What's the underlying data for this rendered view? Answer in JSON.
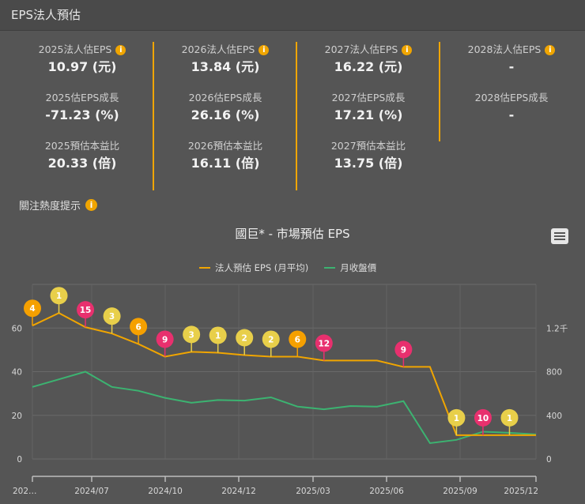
{
  "header": {
    "title": "EPS法人預估"
  },
  "columns": [
    {
      "eps_label": "2025法人估EPS",
      "eps_value": "10.97 (元)",
      "growth_label": "2025估EPS成長",
      "growth_value": "-71.23 (%)",
      "pe_label": "2025預估本益比",
      "pe_value": "20.33 (倍)"
    },
    {
      "eps_label": "2026法人估EPS",
      "eps_value": "13.84 (元)",
      "growth_label": "2026估EPS成長",
      "growth_value": "26.16 (%)",
      "pe_label": "2026預估本益比",
      "pe_value": "16.11 (倍)"
    },
    {
      "eps_label": "2027法人估EPS",
      "eps_value": "16.22 (元)",
      "growth_label": "2027估EPS成長",
      "growth_value": "17.21 (%)",
      "pe_label": "2027預估本益比",
      "pe_value": "13.75 (倍)"
    },
    {
      "eps_label": "2028法人估EPS",
      "eps_value": "-",
      "growth_label": "2028估EPS成長",
      "growth_value": "-"
    }
  ],
  "info_icon_glyph": "i",
  "hint": {
    "label": "關注熱度提示"
  },
  "colors": {
    "accent": "#f0a500",
    "eps_line": "#f0a500",
    "price_line": "#3cb371",
    "marker_yellow": "#e8cf4a",
    "marker_orange": "#f5a000",
    "marker_pink": "#e8306e",
    "background": "#555555"
  },
  "chart_data": {
    "type": "line",
    "title": "國巨* - 市場預估 EPS",
    "legend": [
      "法人預估 EPS (月平均)",
      "月收盤價"
    ],
    "legend_position": "top",
    "x_tick_labels": [
      "202…",
      "2024/07",
      "2024/10",
      "2024/12",
      "2025/03",
      "2025/06",
      "2025/09",
      "2025/12"
    ],
    "left_axis": {
      "ticks": [
        "0",
        "20",
        "40",
        "60"
      ],
      "ylim": [
        0,
        80
      ]
    },
    "right_axis": {
      "ticks": [
        "0",
        "400",
        "800",
        "1.2千"
      ],
      "ylim": [
        0,
        1600
      ]
    },
    "grid": true,
    "x": [
      "2024/05",
      "2024/06",
      "2024/07",
      "2024/08",
      "2024/09",
      "2024/10",
      "2024/11",
      "2024/12",
      "2025/01",
      "2025/02",
      "2025/03",
      "2025/04",
      "2025/05",
      "2025/06",
      "2025/07",
      "2025/08",
      "2025/09",
      "2025/10",
      "2025/11",
      "2025/12"
    ],
    "series": [
      {
        "name": "法人預估 EPS (月平均)",
        "axis": "left",
        "values": [
          61.1,
          66.9,
          60.4,
          57.5,
          52.7,
          46.9,
          49.1,
          48.7,
          47.6,
          46.9,
          46.9,
          45.1,
          45.1,
          45.1,
          42.2,
          42.2,
          10.9,
          10.9,
          10.9,
          10.9
        ]
      },
      {
        "name": "月收盤價",
        "axis": "right",
        "values": [
          660,
          730,
          800,
          660,
          625,
          560,
          515,
          540,
          535,
          565,
          480,
          455,
          485,
          480,
          530,
          145,
          175,
          250,
          240,
          225
        ]
      }
    ],
    "attention_markers": [
      {
        "index": 0,
        "count": "4",
        "color": "orange"
      },
      {
        "index": 1,
        "count": "1",
        "color": "yellow"
      },
      {
        "index": 2,
        "count": "15",
        "color": "pink"
      },
      {
        "index": 3,
        "count": "3",
        "color": "yellow"
      },
      {
        "index": 4,
        "count": "6",
        "color": "orange"
      },
      {
        "index": 5,
        "count": "9",
        "color": "pink"
      },
      {
        "index": 6,
        "count": "3",
        "color": "yellow"
      },
      {
        "index": 7,
        "count": "1",
        "color": "yellow"
      },
      {
        "index": 8,
        "count": "2",
        "color": "yellow"
      },
      {
        "index": 9,
        "count": "2",
        "color": "yellow"
      },
      {
        "index": 10,
        "count": "6",
        "color": "orange"
      },
      {
        "index": 11,
        "count": "12",
        "color": "pink"
      },
      {
        "index": 14,
        "count": "9",
        "color": "pink"
      },
      {
        "index": 16,
        "count": "1",
        "color": "yellow"
      },
      {
        "index": 17,
        "count": "10",
        "color": "pink"
      },
      {
        "index": 18,
        "count": "1",
        "color": "yellow"
      }
    ]
  }
}
